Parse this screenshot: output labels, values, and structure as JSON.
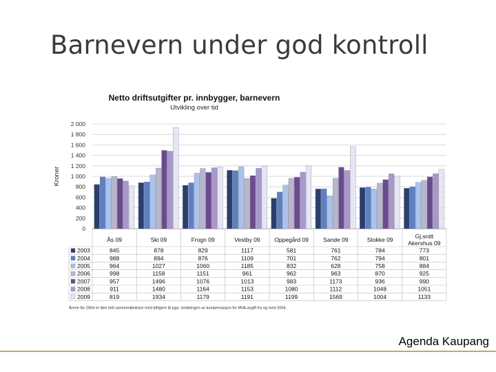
{
  "slide": {
    "title": "Barnevern under god kontroll",
    "footer": "Agenda Kaupang"
  },
  "chart_data": {
    "type": "bar",
    "title": "Netto driftsutgifter pr. innbygger, barnevern",
    "subtitle": "Utvikling over tid",
    "ylabel": "Kroner",
    "xlabel": "",
    "ylim": [
      0,
      2000
    ],
    "yticks": [
      0,
      200,
      400,
      600,
      800,
      1000,
      1200,
      1400,
      1600,
      1800,
      2000
    ],
    "ytick_labels": [
      "0",
      "200",
      "400",
      "600",
      "800",
      "1 000",
      "1 200",
      "1 400",
      "1 600",
      "1 800",
      "2 000"
    ],
    "grid": true,
    "categories": [
      [
        "Ås 09"
      ],
      [
        "Ski 09"
      ],
      [
        "Frogn 09"
      ],
      [
        "Vestby 09"
      ],
      [
        "Oppegård 09"
      ],
      [
        "Sande 09"
      ],
      [
        "Stokke 09"
      ],
      [
        "Gj.snitt",
        "Akershus 09"
      ]
    ],
    "series": [
      {
        "name": "2003",
        "color": "#2b3f6e",
        "values": [
          845,
          878,
          829,
          1117,
          581,
          761,
          784,
          773
        ]
      },
      {
        "name": "2004",
        "color": "#5c80c4",
        "values": [
          988,
          894,
          876,
          1109,
          701,
          762,
          794,
          801
        ]
      },
      {
        "name": "2005",
        "color": "#a9c3ec",
        "values": [
          964,
          1027,
          1060,
          1185,
          832,
          628,
          758,
          884
        ]
      },
      {
        "name": "2006",
        "color": "#b7b6cb",
        "values": [
          998,
          1158,
          1151,
          961,
          962,
          963,
          870,
          925
        ]
      },
      {
        "name": "2007",
        "color": "#6b4a8e",
        "values": [
          957,
          1496,
          1076,
          1013,
          983,
          1173,
          936,
          990
        ]
      },
      {
        "name": "2008",
        "color": "#a898cc",
        "values": [
          911,
          1480,
          1164,
          1153,
          1080,
          1112,
          1048,
          1051
        ]
      },
      {
        "name": "2009",
        "color": "#e6e5f4",
        "values": [
          819,
          1934,
          1179,
          1191,
          1199,
          1569,
          1004,
          1133
        ]
      }
    ],
    "table_values": [
      [
        "845",
        "878",
        "829",
        "1117",
        "581",
        "761",
        "784",
        "773"
      ],
      [
        "988",
        "894",
        "876",
        "1109",
        "701",
        "762",
        "794",
        "801"
      ],
      [
        "964",
        "1027",
        "1060",
        "1185",
        "832",
        "628",
        "758",
        "884"
      ],
      [
        "998",
        "1158",
        "1151",
        "961",
        "962",
        "963",
        "870",
        "925"
      ],
      [
        "957",
        "1496",
        "1076",
        "1013",
        "983",
        "1173",
        "936",
        "990"
      ],
      [
        "911",
        "1480",
        "1164",
        "1153",
        "1080",
        "1112",
        "1048",
        "1051"
      ],
      [
        "819",
        "1934",
        "1179",
        "1191",
        "1199",
        "1569",
        "1004",
        "1133"
      ]
    ],
    "footnote": "Årene før 2004 er ikke helt sammenliknbare med tidligere år pga. innføringen av kompensasjon for MVA-avgift fra og med 2004."
  }
}
